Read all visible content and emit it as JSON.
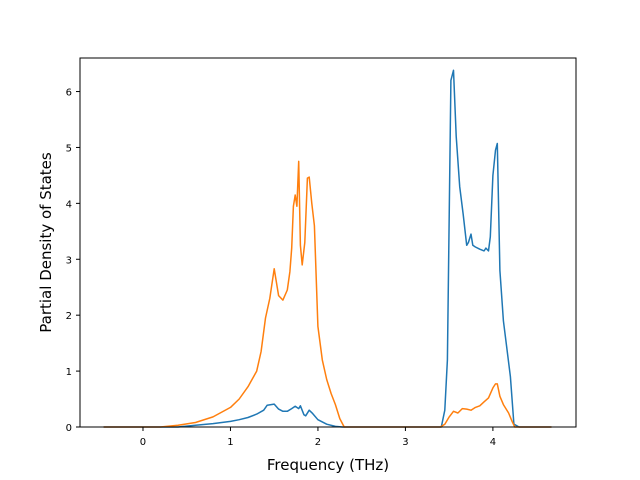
{
  "chart_data": {
    "type": "line",
    "title": "",
    "xlabel": "Frequency (THz)",
    "ylabel": "Partial Density of States",
    "xlim": [
      -0.72,
      4.95
    ],
    "ylim": [
      0,
      6.6
    ],
    "xticks": [
      "0",
      "1",
      "2",
      "3",
      "4"
    ],
    "yticks": [
      "0",
      "1",
      "2",
      "3",
      "4",
      "5",
      "6"
    ],
    "grid": false,
    "legend": "none",
    "series": [
      {
        "color": "#1f77b4",
        "x": [
          -0.45,
          0.4,
          0.6,
          0.8,
          1.0,
          1.1,
          1.2,
          1.3,
          1.38,
          1.42,
          1.5,
          1.55,
          1.6,
          1.65,
          1.7,
          1.74,
          1.78,
          1.8,
          1.84,
          1.86,
          1.9,
          1.94,
          2.0,
          2.1,
          2.2,
          2.28,
          3.41,
          3.45,
          3.48,
          3.52,
          3.55,
          3.58,
          3.62,
          3.66,
          3.7,
          3.72,
          3.75,
          3.77,
          3.8,
          3.85,
          3.9,
          3.92,
          3.95,
          3.97,
          4.0,
          4.03,
          4.05,
          4.08,
          4.12,
          4.16,
          4.2,
          4.24,
          4.3,
          4.5,
          4.67
        ],
        "y": [
          0,
          0,
          0.03,
          0.06,
          0.1,
          0.13,
          0.17,
          0.23,
          0.3,
          0.39,
          0.41,
          0.32,
          0.28,
          0.28,
          0.33,
          0.37,
          0.33,
          0.38,
          0.22,
          0.2,
          0.3,
          0.24,
          0.13,
          0.05,
          0.01,
          0,
          0,
          0.3,
          1.2,
          6.2,
          6.38,
          5.2,
          4.3,
          3.8,
          3.25,
          3.3,
          3.45,
          3.25,
          3.22,
          3.18,
          3.15,
          3.2,
          3.15,
          3.4,
          4.5,
          4.95,
          5.07,
          2.8,
          1.9,
          1.4,
          0.9,
          0.05,
          0,
          0,
          0
        ]
      },
      {
        "color": "#ff7f0e",
        "x": [
          -0.45,
          0.2,
          0.4,
          0.6,
          0.8,
          1.0,
          1.1,
          1.2,
          1.3,
          1.35,
          1.4,
          1.45,
          1.5,
          1.55,
          1.6,
          1.65,
          1.68,
          1.7,
          1.72,
          1.74,
          1.76,
          1.78,
          1.8,
          1.82,
          1.85,
          1.88,
          1.9,
          1.93,
          1.96,
          2.0,
          2.05,
          2.1,
          2.15,
          2.2,
          2.25,
          2.3,
          3.4,
          3.45,
          3.5,
          3.55,
          3.6,
          3.65,
          3.7,
          3.75,
          3.8,
          3.85,
          3.9,
          3.95,
          4.0,
          4.03,
          4.05,
          4.08,
          4.12,
          4.18,
          4.22,
          4.25,
          4.5,
          4.67
        ],
        "y": [
          0,
          0,
          0.03,
          0.08,
          0.18,
          0.35,
          0.5,
          0.72,
          1.0,
          1.35,
          1.95,
          2.3,
          2.83,
          2.35,
          2.27,
          2.45,
          2.78,
          3.2,
          3.95,
          4.15,
          3.95,
          4.75,
          3.25,
          2.9,
          3.3,
          4.45,
          4.47,
          4.0,
          3.6,
          1.8,
          1.2,
          0.85,
          0.6,
          0.4,
          0.15,
          0,
          0,
          0.05,
          0.18,
          0.28,
          0.25,
          0.33,
          0.32,
          0.3,
          0.35,
          0.38,
          0.45,
          0.52,
          0.7,
          0.77,
          0.77,
          0.55,
          0.4,
          0.25,
          0.1,
          0,
          0,
          0
        ]
      }
    ]
  }
}
